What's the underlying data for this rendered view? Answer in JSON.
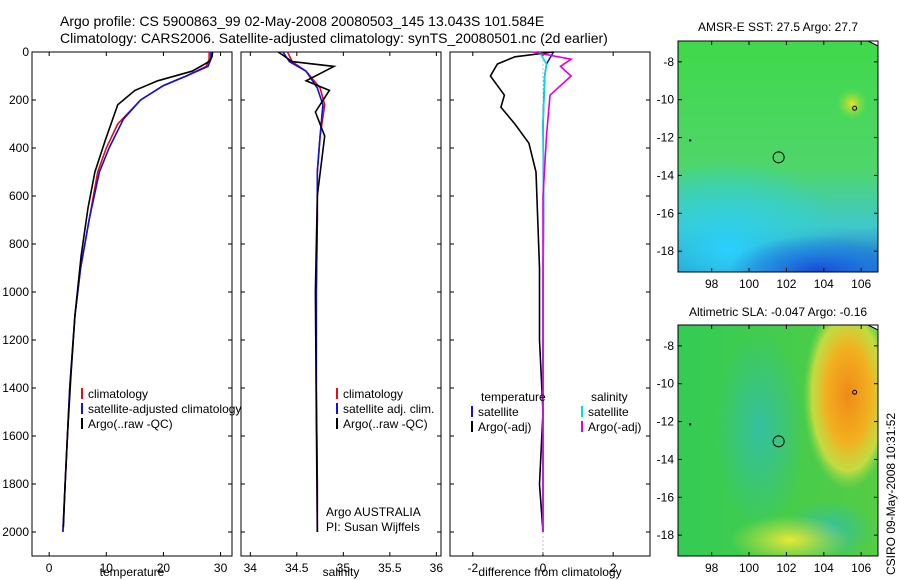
{
  "header": {
    "line1": "Argo profile: CS 5900863_99 02-May-2008 20080503_145 13.043S 101.584E",
    "line2": "Climatology: CARS2006. Satellite-adjusted climatology: synTS_20080501.nc (2d earlier)"
  },
  "colors": {
    "red": "#dd1111",
    "blue": "#1111dd",
    "black": "#000000",
    "cyan": "#00dddd",
    "magenta": "#dd00dd"
  },
  "side_label": "CSIRO 09-May-2008 10:31:52",
  "chart_data": [
    {
      "type": "line",
      "xlabel": "temperature",
      "ylabel": "",
      "xlim": [
        -3,
        32
      ],
      "ylim": [
        2100,
        0
      ],
      "xticks": [
        0,
        10,
        20,
        30
      ],
      "yticks": [
        0,
        200,
        400,
        600,
        800,
        1000,
        1200,
        1400,
        1600,
        1800,
        2000
      ],
      "legend_placement": "lower-right",
      "legend": [
        {
          "label": "climatology",
          "color": "red"
        },
        {
          "label": "satellite-adjusted climatology",
          "color": "blue"
        },
        {
          "label": "Argo(..raw -QC)",
          "color": "black"
        }
      ],
      "series": [
        {
          "name": "climatology",
          "color": "red",
          "x": [
            28.0,
            28.0,
            27.5,
            24,
            20,
            16,
            12,
            10,
            8.5,
            7,
            5.5,
            4.5,
            3.6,
            3.0,
            2.6,
            2.4
          ],
          "y": [
            0,
            30,
            60,
            100,
            140,
            200,
            300,
            400,
            500,
            700,
            900,
            1100,
            1400,
            1700,
            1900,
            2000
          ]
        },
        {
          "name": "satellite-adjusted climatology",
          "color": "blue",
          "x": [
            28.3,
            28.3,
            27.8,
            24,
            20,
            16,
            13,
            10.5,
            8.8,
            7,
            5.5,
            4.5,
            3.6,
            3.0,
            2.6,
            2.4
          ],
          "y": [
            0,
            30,
            60,
            100,
            140,
            200,
            280,
            400,
            500,
            700,
            900,
            1100,
            1400,
            1700,
            1900,
            2000
          ]
        },
        {
          "name": "Argo(..raw -QC)",
          "color": "black",
          "x": [
            28.6,
            28.5,
            28.0,
            25,
            19,
            15,
            12,
            9.8,
            8,
            6.8,
            5.6,
            4.5,
            3.8,
            3.2,
            2.8,
            2.5
          ],
          "y": [
            0,
            20,
            40,
            80,
            120,
            160,
            220,
            370,
            500,
            650,
            850,
            1100,
            1350,
            1600,
            1800,
            1980
          ]
        }
      ]
    },
    {
      "type": "line",
      "xlabel": "salinity",
      "ylabel": "",
      "xlim": [
        33.9,
        36.05
      ],
      "ylim": [
        2100,
        0
      ],
      "xticks": [
        34,
        34.5,
        35,
        35.5,
        36
      ],
      "legend_placement": "lower-right",
      "legend": [
        {
          "label": "climatology",
          "color": "red"
        },
        {
          "label": "satellite adj. clim.",
          "color": "blue"
        },
        {
          "label": "Argo(..raw -QC)",
          "color": "black"
        }
      ],
      "annotations": [
        "Argo AUSTRALIA",
        "PI: Susan Wijffels"
      ],
      "series": [
        {
          "name": "climatology",
          "color": "red",
          "x": [
            34.4,
            34.45,
            34.6,
            34.75,
            34.8,
            34.75,
            34.72,
            34.72,
            34.71,
            34.71,
            34.72,
            34.72
          ],
          "y": [
            0,
            40,
            80,
            150,
            220,
            350,
            500,
            700,
            1000,
            1400,
            1800,
            2000
          ]
        },
        {
          "name": "satellite adj. clim.",
          "color": "blue",
          "x": [
            34.35,
            34.42,
            34.6,
            34.72,
            34.78,
            34.75,
            34.72,
            34.72,
            34.71,
            34.71,
            34.72,
            34.72
          ],
          "y": [
            0,
            40,
            80,
            150,
            220,
            350,
            500,
            700,
            1000,
            1400,
            1800,
            2000
          ]
        },
        {
          "name": "Argo(..raw -QC)",
          "color": "black",
          "x": [
            34.3,
            34.45,
            34.9,
            34.6,
            34.85,
            34.7,
            34.8,
            34.72,
            34.7,
            34.71,
            34.72
          ],
          "y": [
            0,
            40,
            60,
            120,
            160,
            250,
            350,
            600,
            1000,
            1500,
            2000
          ]
        }
      ]
    },
    {
      "type": "line",
      "xlabel": "difference from climatology",
      "ylabel": "",
      "xlim": [
        -2.65,
        3.05
      ],
      "ylim": [
        2100,
        0
      ],
      "xticks": [
        -2,
        0,
        2
      ],
      "legend_placement": "lower-right",
      "legend_groups": [
        {
          "title": "temperature",
          "items": [
            {
              "label": "satellite",
              "color": "blue"
            },
            {
              "label": "Argo(-adj)",
              "color": "black"
            }
          ]
        },
        {
          "title": "salinity",
          "items": [
            {
              "label": "satellite",
              "color": "cyan"
            },
            {
              "label": "Argo(-adj)",
              "color": "magenta"
            }
          ]
        }
      ],
      "series": [
        {
          "name": "temperature satellite",
          "color": "blue",
          "x": [
            0.3,
            0.1,
            0.05,
            0.0,
            0.02,
            0.0,
            0.0,
            0.0
          ],
          "y": [
            0,
            50,
            100,
            300,
            600,
            1000,
            1500,
            2000
          ]
        },
        {
          "name": "temperature Argo(-adj)",
          "color": "black",
          "x": [
            0.3,
            -0.8,
            -1.3,
            -1.5,
            -1.1,
            -1.2,
            -0.8,
            -0.4,
            -0.2,
            -0.1,
            -0.1,
            0.0,
            -0.1,
            0.0
          ],
          "y": [
            0,
            20,
            50,
            100,
            180,
            230,
            300,
            380,
            500,
            900,
            1200,
            1500,
            1800,
            2000
          ]
        },
        {
          "name": "salinity satellite",
          "color": "cyan",
          "x": [
            -0.1,
            0.1,
            0.05,
            0.0,
            0.02,
            0.0,
            0.0,
            0.0
          ],
          "y": [
            0,
            50,
            100,
            300,
            600,
            1000,
            1500,
            2000
          ]
        },
        {
          "name": "salinity Argo(-adj)",
          "color": "magenta",
          "x": [
            -0.3,
            0.8,
            0.5,
            0.8,
            0.2,
            0.1,
            0.0,
            0.0,
            0.0
          ],
          "y": [
            0,
            30,
            60,
            100,
            180,
            350,
            600,
            1000,
            2000
          ]
        }
      ]
    },
    {
      "type": "heatmap",
      "title": "AMSR-E SST: 27.5 Argo: 27.7",
      "xlim": [
        96.2,
        106.9
      ],
      "ylim": [
        -19.1,
        -6.9
      ],
      "xticks": [
        98,
        100,
        102,
        104,
        106
      ],
      "yticks": [
        -8,
        -10,
        -12,
        -14,
        -16,
        -18
      ],
      "marker": {
        "lon": 101.584,
        "lat": -13.043
      }
    },
    {
      "type": "heatmap",
      "title": "Altimetric SLA: -0.047 Argo: -0.16",
      "xlim": [
        96.2,
        106.9
      ],
      "ylim": [
        -19.1,
        -6.9
      ],
      "xticks": [
        98,
        100,
        102,
        104,
        106
      ],
      "yticks": [
        -8,
        -10,
        -12,
        -14,
        -16,
        -18
      ],
      "marker": {
        "lon": 101.584,
        "lat": -13.043
      }
    }
  ]
}
